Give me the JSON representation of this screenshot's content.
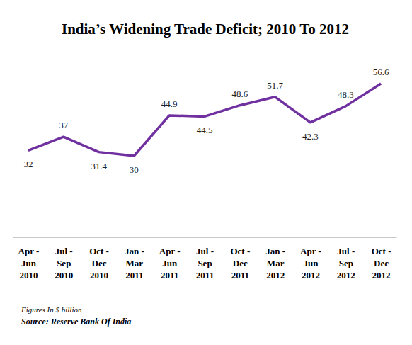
{
  "chart_data": {
    "type": "line",
    "title": "India’s Widening Trade Deficit; 2010 To 2012",
    "categories": [
      "Apr -\nJun\n2010",
      "Jul -\nSep\n2010",
      "Oct -\nDec\n2010",
      "Jan -\nMar\n2011",
      "Apr -\nJun\n2011",
      "Jul -\nSep\n2011",
      "Oct -\nDec\n2011",
      "Jan -\nMar\n2012",
      "Apr -\nJun\n2012",
      "Jul -\nSep\n2012",
      "Oct -\nDec\n2012"
    ],
    "values": [
      32,
      37,
      31.4,
      30,
      44.9,
      44.5,
      48.6,
      51.7,
      42.3,
      48.3,
      56.6
    ],
    "color": "#7030a0",
    "ylim": [
      0,
      60
    ],
    "data_labels": true,
    "tick_labels": "x",
    "grid": false,
    "annotations": [
      "Figures In $ billion",
      "Source: Reserve Bank Of India"
    ]
  }
}
